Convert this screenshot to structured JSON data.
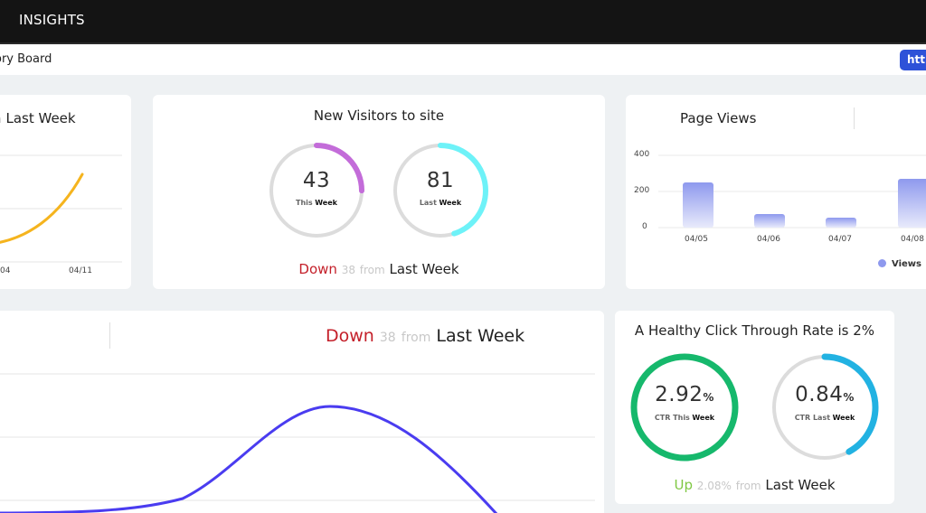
{
  "app": {
    "title": "INSIGHTS"
  },
  "subheader": {
    "title": "ory Board",
    "url_button": "http"
  },
  "cards": {
    "left_trend": {
      "base": "Last Week",
      "muted": "m",
      "x_ticks": [
        "04",
        "04/11"
      ],
      "line_color": "#f5b41e"
    },
    "new_visitors": {
      "title": "New Visitors to site",
      "this_week": {
        "value": "43",
        "label_light": "This",
        "label_bold": "Week",
        "fraction": 0.25,
        "color": "#c36cd9"
      },
      "last_week": {
        "value": "81",
        "label_light": "Last",
        "label_bold": "Week",
        "fraction": 0.45,
        "color": "#6ef2f8"
      },
      "compare": {
        "direction": "Down",
        "amount": "38",
        "from": "from",
        "base": "Last Week"
      }
    },
    "page_views": {
      "title": "Page Views",
      "legend": "Views",
      "bar_color": "#8e99ee",
      "chart_data": {
        "type": "bar",
        "categories": [
          "04/05",
          "04/06",
          "04/07",
          "04/08"
        ],
        "series": [
          {
            "name": "Views",
            "values": [
              250,
              75,
              55,
              270
            ]
          }
        ],
        "ylim": [
          0,
          400
        ],
        "y_ticks": [
          "400",
          "200",
          "0"
        ],
        "grid": true,
        "legend_position": "bottom-right"
      }
    },
    "big_trend": {
      "compare": {
        "direction": "Down",
        "amount": "38",
        "from": "from",
        "base": "Last Week"
      },
      "line_color": "#4a3cf0"
    },
    "ctr": {
      "title": "A Healthy Click Through Rate is 2%",
      "this_week": {
        "value": "2.92",
        "unit": "%",
        "label_light": "CTR This",
        "label_bold": "Week",
        "fraction": 1.0,
        "color": "#16b86c"
      },
      "last_week": {
        "value": "0.84",
        "unit": "%",
        "label_light": "CTR Last",
        "label_bold": "Week",
        "fraction": 0.42,
        "color": "#22b2e2"
      },
      "compare": {
        "direction": "Up",
        "amount": "2.08%",
        "from": "from",
        "base": "Last Week"
      }
    }
  }
}
